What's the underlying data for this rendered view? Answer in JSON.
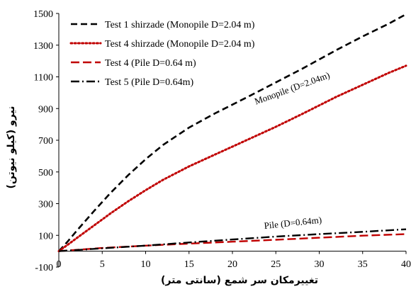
{
  "chart_data": {
    "type": "line",
    "xlabel": "تغییرمکان سر شمع (سانتی متر)",
    "ylabel": "نیرو (کیلو نیوتن)",
    "xlim": [
      0,
      40
    ],
    "ylim": [
      -100,
      1500
    ],
    "xticks": [
      0,
      5,
      10,
      15,
      20,
      25,
      30,
      35,
      40
    ],
    "yticks": [
      -100,
      100,
      300,
      500,
      700,
      900,
      1100,
      1300,
      1500
    ],
    "grid": false,
    "legend_position": "top-left",
    "annotations": [
      {
        "text": "Monopile (D=2.04m)",
        "x": 27,
        "y": 1010,
        "angle": -20
      },
      {
        "text": "Pile (D=0.64m)",
        "x": 27,
        "y": 160,
        "angle": -6
      }
    ],
    "series": [
      {
        "name": "Test 1 shirzade (Monopile D=2.04 m)",
        "color": "#000000",
        "dash": "dashed",
        "x": [
          0,
          1,
          2,
          4,
          6,
          8,
          10,
          12,
          15,
          18,
          20,
          22,
          25,
          28,
          30,
          32,
          35,
          38,
          40
        ],
        "y": [
          0,
          60,
          125,
          250,
          370,
          480,
          580,
          670,
          780,
          870,
          925,
          980,
          1065,
          1150,
          1210,
          1270,
          1355,
          1435,
          1495
        ]
      },
      {
        "name": "Test 4 shirzade (Monopile D=2.04 m)",
        "color": "#c00000",
        "dash": "dotted",
        "x": [
          0,
          1,
          2,
          4,
          6,
          8,
          10,
          12,
          15,
          18,
          20,
          22,
          25,
          28,
          30,
          32,
          35,
          38,
          40
        ],
        "y": [
          0,
          40,
          80,
          160,
          240,
          315,
          385,
          450,
          535,
          610,
          660,
          710,
          785,
          865,
          920,
          975,
          1050,
          1125,
          1170
        ]
      },
      {
        "name": "Test 4 (Pile D=0.64 m)",
        "color": "#c00000",
        "dash": "long-dash",
        "x": [
          0,
          5,
          10,
          15,
          20,
          25,
          30,
          35,
          40
        ],
        "y": [
          0,
          20,
          35,
          48,
          60,
          72,
          85,
          98,
          108
        ]
      },
      {
        "name": "Test 5 (Pile D=0.64m)",
        "color": "#000000",
        "dash": "dash-dot",
        "x": [
          0,
          5,
          10,
          15,
          20,
          25,
          30,
          35,
          40
        ],
        "y": [
          0,
          18,
          35,
          55,
          74,
          92,
          108,
          122,
          138
        ]
      }
    ]
  }
}
